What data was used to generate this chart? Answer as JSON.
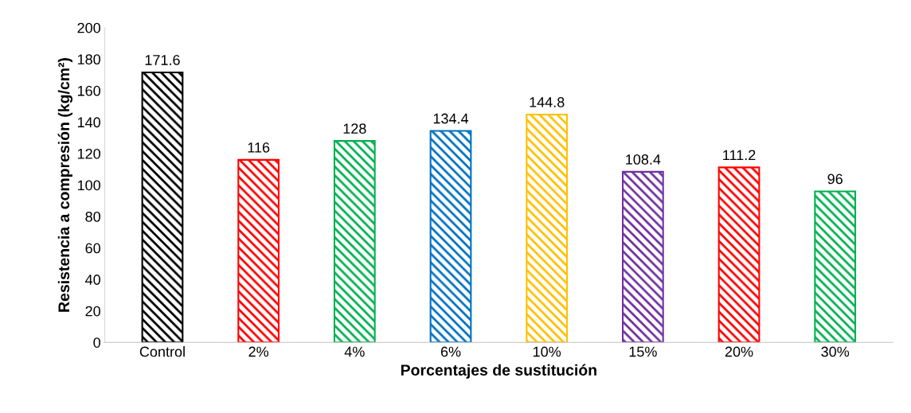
{
  "chart_data": {
    "type": "bar",
    "xlabel": "Porcentajes de sustitución",
    "ylabel": "Resistencia a compresión (kg/cm²)",
    "categories": [
      "Control",
      "2%",
      "4%",
      "6%",
      "10%",
      "15%",
      "20%",
      "30%"
    ],
    "values": [
      171.6,
      116,
      128,
      134.4,
      144.8,
      108.4,
      111.2,
      96
    ],
    "colors": [
      "#000000",
      "#ff0000",
      "#00b050",
      "#0070c0",
      "#ffc000",
      "#7030a0",
      "#ff0000",
      "#00b050"
    ],
    "ylim": [
      0,
      200
    ],
    "yticks": [
      0,
      20,
      40,
      60,
      80,
      100,
      120,
      140,
      160,
      180,
      200
    ],
    "data_labels": true,
    "grid": false,
    "legend": false
  }
}
